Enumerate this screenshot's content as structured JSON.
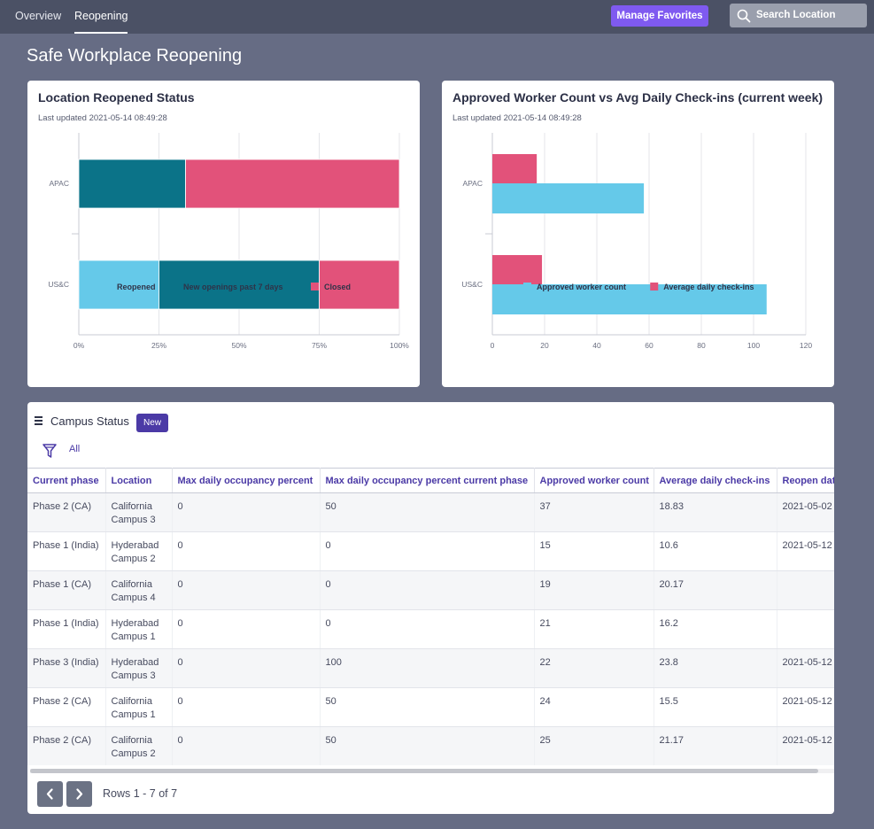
{
  "nav": {
    "tabs": [
      {
        "label": "Overview",
        "active": false
      },
      {
        "label": "Reopening",
        "active": true
      }
    ],
    "manage_favorites_label": "Manage Favorites",
    "search_placeholder": "Search Location",
    "colors": {
      "bar": "#4b5165",
      "favorites": "#7f5af0"
    }
  },
  "page": {
    "title": "Safe Workplace Reopening"
  },
  "status_card": {
    "title": "Location Reopened Status",
    "updated": "Last updated 2021-05-14 08:49:28",
    "chart_data": {
      "type": "bar",
      "orientation": "horizontal",
      "stacked": true,
      "categories": [
        "APAC",
        "US&C"
      ],
      "series": [
        {
          "name": "Reopened",
          "color": "#65c9e9",
          "values": [
            0,
            25
          ]
        },
        {
          "name": "New openings past 7 days",
          "color": "#0b7388",
          "values": [
            33.3,
            50
          ]
        },
        {
          "name": "Closed",
          "color": "#e2527a",
          "values": [
            66.7,
            25
          ]
        }
      ],
      "xlim": [
        0,
        100
      ],
      "x_ticks": [
        "0%",
        "25%",
        "50%",
        "75%",
        "100%"
      ],
      "grid": true,
      "legend": "bottom"
    }
  },
  "checkins_card": {
    "title": "Approved Worker Count vs Avg Daily Check-ins (current week)",
    "updated": "Last updated 2021-05-14 08:49:28",
    "chart_data": {
      "type": "bar",
      "orientation": "horizontal",
      "stacked": false,
      "categories": [
        "APAC",
        "US&C"
      ],
      "series": [
        {
          "name": "Average daily check-ins",
          "color": "#e2527a",
          "values": [
            17,
            19
          ]
        },
        {
          "name": "Approved worker count",
          "color": "#65c9e9",
          "values": [
            58,
            105
          ]
        }
      ],
      "legend_order": [
        "Approved worker count",
        "Average daily check-ins"
      ],
      "xlim": [
        0,
        120
      ],
      "x_ticks": [
        "0",
        "20",
        "40",
        "60",
        "80",
        "100",
        "120"
      ],
      "grid": true,
      "legend": "bottom"
    }
  },
  "campus": {
    "title": "Campus Status",
    "new_label": "New",
    "filter_label": "All",
    "columns": [
      "Current phase",
      "Location",
      "Max daily occupancy percent",
      "Max daily occupancy percent current phase",
      "Approved worker count",
      "Average daily check-ins",
      "Reopen date"
    ],
    "rows": [
      [
        "Phase 2 (CA)",
        "California\nCampus 3",
        "0",
        "50",
        "37",
        "18.83",
        "2021-05-02"
      ],
      [
        "Phase 1 (India)",
        "Hyderabad\nCampus 2",
        "0",
        "0",
        "15",
        "10.6",
        "2021-05-12"
      ],
      [
        "Phase 1 (CA)",
        "California\nCampus 4",
        "0",
        "0",
        "19",
        "20.17",
        ""
      ],
      [
        "Phase 1 (India)",
        "Hyderabad\nCampus 1",
        "0",
        "0",
        "21",
        "16.2",
        ""
      ],
      [
        "Phase 3 (India)",
        "Hyderabad\nCampus 3",
        "0",
        "100",
        "22",
        "23.8",
        "2021-05-12"
      ],
      [
        "Phase 2 (CA)",
        "California\nCampus 1",
        "0",
        "50",
        "24",
        "15.5",
        "2021-05-12"
      ],
      [
        "Phase 2 (CA)",
        "California\nCampus 2",
        "0",
        "50",
        "25",
        "21.17",
        "2021-05-12"
      ]
    ],
    "rows_label": "Rows 1 - 7 of 7"
  }
}
